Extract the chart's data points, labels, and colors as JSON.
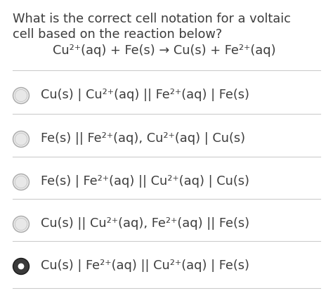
{
  "background_color": "#ffffff",
  "text_color": "#3d3d3d",
  "question_line1": "What is the correct cell notation for a voltaic",
  "question_line2": "cell based on the reaction below?",
  "reaction": "Cu²⁺(aq) + Fe(s) → Cu(s) + Fe²⁺(aq)",
  "options": [
    {
      "text": "Cu(s) | Cu²⁺(aq) || Fe²⁺(aq) | Fe(s)",
      "selected": false
    },
    {
      "text": "Fe(s) || Fe²⁺(aq), Cu²⁺(aq) | Cu(s)",
      "selected": false
    },
    {
      "text": "Fe(s) | Fe²⁺(aq) || Cu²⁺(aq) | Cu(s)",
      "selected": false
    },
    {
      "text": "Cu(s) || Cu²⁺(aq), Fe²⁺(aq) || Fe(s)",
      "selected": false
    },
    {
      "text": "Cu(s) | Fe²⁺(aq) || Cu²⁺(aq) | Fe(s)",
      "selected": true
    }
  ],
  "figsize": [
    4.74,
    4.34
  ],
  "dpi": 100,
  "question_fontsize": 12.8,
  "reaction_fontsize": 12.8,
  "option_fontsize": 12.8,
  "divider_color": "#cccccc",
  "circle_unselected_face": "#e8e8e8",
  "circle_unselected_edge": "#aaaaaa",
  "circle_selected_face": "#3a3a3a",
  "circle_selected_edge": "#1a1a1a"
}
